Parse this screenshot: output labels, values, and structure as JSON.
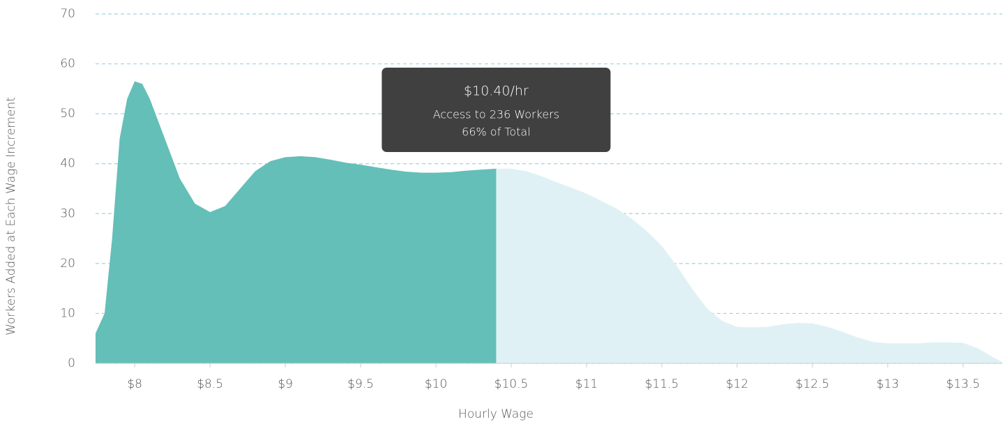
{
  "chart_data": {
    "type": "area",
    "xlabel": "Hourly Wage",
    "ylabel": "Workers Added at Each Wage Increment",
    "x": [
      7.74,
      7.8,
      7.85,
      7.9,
      7.95,
      8.0,
      8.05,
      8.1,
      8.2,
      8.3,
      8.4,
      8.5,
      8.6,
      8.7,
      8.8,
      8.9,
      9.0,
      9.1,
      9.2,
      9.3,
      9.4,
      9.5,
      9.6,
      9.7,
      9.8,
      9.9,
      10.0,
      10.1,
      10.2,
      10.3,
      10.4,
      10.5,
      10.6,
      10.7,
      10.8,
      10.9,
      11.0,
      11.1,
      11.2,
      11.3,
      11.4,
      11.5,
      11.6,
      11.7,
      11.8,
      11.9,
      12.0,
      12.1,
      12.2,
      12.3,
      12.4,
      12.5,
      12.6,
      12.7,
      12.8,
      12.9,
      13.0,
      13.1,
      13.2,
      13.3,
      13.4,
      13.5,
      13.6,
      13.7,
      13.76
    ],
    "values": [
      6,
      10,
      25,
      45,
      53,
      56.5,
      56,
      53,
      45,
      37,
      32,
      30.3,
      31.5,
      35,
      38.5,
      40.5,
      41.3,
      41.5,
      41.3,
      40.8,
      40.2,
      39.8,
      39.3,
      38.8,
      38.4,
      38.2,
      38.2,
      38.3,
      38.6,
      38.8,
      39,
      39,
      38.5,
      37.5,
      36.3,
      35.2,
      34,
      32.5,
      31,
      29,
      26.5,
      23.5,
      19.5,
      15,
      11,
      8.5,
      7.3,
      7.2,
      7.3,
      7.8,
      8.1,
      8,
      7.3,
      6.3,
      5.2,
      4.3,
      4.0,
      4.0,
      4.0,
      4.2,
      4.2,
      4.1,
      3.0,
      1.2,
      0.3
    ],
    "color": "#dff1f5",
    "selected_color": "#64bfb8",
    "selected_x": 10.4,
    "tooltip": {
      "title": "$10.40/hr",
      "lines": [
        "Access to 236 Workers",
        "66% of Total"
      ]
    },
    "xlim": [
      7.74,
      13.76
    ],
    "ylim": [
      0,
      70
    ],
    "xticks": [
      {
        "value": 8,
        "label": "$8"
      },
      {
        "value": 8.5,
        "label": "$8.5"
      },
      {
        "value": 9,
        "label": "$9"
      },
      {
        "value": 9.5,
        "label": "$9.5"
      },
      {
        "value": 10,
        "label": "$10"
      },
      {
        "value": 10.5,
        "label": "$10.5"
      },
      {
        "value": 11,
        "label": "$11"
      },
      {
        "value": 11.5,
        "label": "$11.5"
      },
      {
        "value": 12,
        "label": "$12"
      },
      {
        "value": 12.5,
        "label": "$12.5"
      },
      {
        "value": 13,
        "label": "$13"
      },
      {
        "value": 13.5,
        "label": "$13.5"
      }
    ],
    "yticks": [
      0,
      10,
      20,
      30,
      40,
      50,
      60,
      70
    ],
    "grid": true,
    "grid_color": "#9fd3df"
  }
}
